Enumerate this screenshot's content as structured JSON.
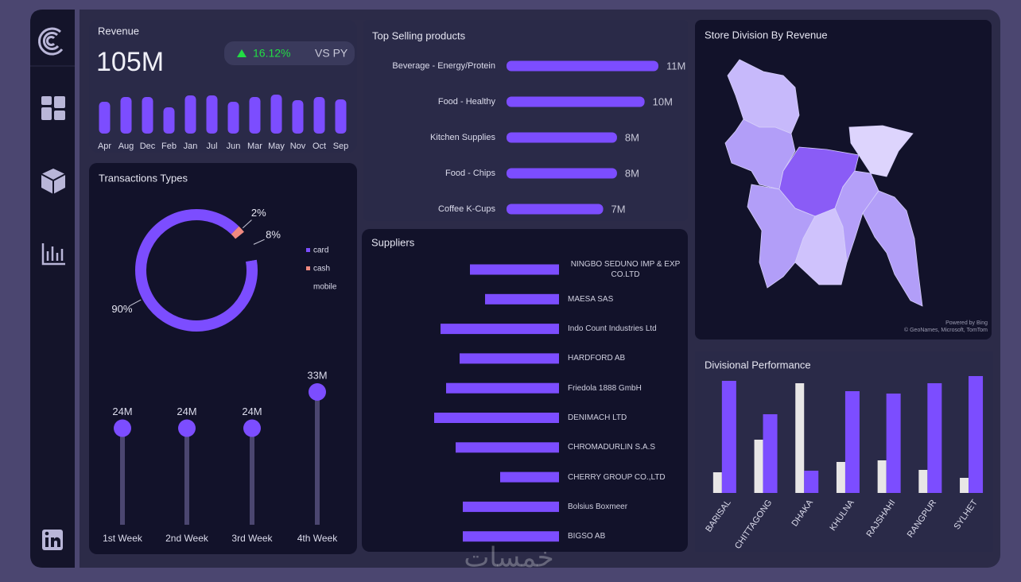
{
  "revenue": {
    "title": "Revenue",
    "value": "105M",
    "change": "16.12%",
    "compare": "VS PY"
  },
  "map": {
    "title": "Store Division By Revenue",
    "credit1": "Powered by Bing",
    "credit2": "© GeoNames, Microsoft, TomTom"
  },
  "watermark": "خمسات",
  "chart_data": [
    {
      "type": "bar",
      "categories": [
        "Apr",
        "Aug",
        "Dec",
        "Feb",
        "Jan",
        "Jul",
        "Jun",
        "Mar",
        "May",
        "Nov",
        "Oct",
        "Sep"
      ],
      "values": [
        8.0,
        9.2,
        9.2,
        6.6,
        9.6,
        9.6,
        8.0,
        9.2,
        9.8,
        8.4,
        9.2,
        8.6
      ],
      "color": "#7c4dff",
      "ylim": [
        0,
        10
      ]
    },
    {
      "type": "hbar",
      "title": "Top Selling products",
      "categories": [
        "Beverage - Energy/Protein",
        "Food - Healthy",
        "Kitchen Supplies",
        "Food - Chips",
        "Coffee K-Cups"
      ],
      "values": [
        11,
        10,
        8,
        8,
        7
      ],
      "value_labels": [
        "11M",
        "10M",
        "8M",
        "8M",
        "7M"
      ],
      "color": "#7c4dff",
      "xlim": [
        0,
        11
      ]
    },
    {
      "type": "pie",
      "title": "Transactions Types",
      "categories": [
        "card",
        "cash",
        "mobile"
      ],
      "values": [
        90,
        2,
        8
      ],
      "value_labels": [
        "90%",
        "2%",
        "8%"
      ],
      "colors": [
        "#7c4dff",
        "#f08a80",
        "#12122a"
      ],
      "legend": "right"
    },
    {
      "type": "lollipop",
      "categories": [
        "1st Week",
        "2nd Week",
        "3rd Week",
        "4th Week"
      ],
      "values": [
        24,
        24,
        24,
        33
      ],
      "value_labels": [
        "24M",
        "24M",
        "24M",
        "33M"
      ],
      "color": "#7c4dff",
      "ylim": [
        0,
        33
      ]
    },
    {
      "type": "hbar",
      "title": "Suppliers",
      "categories": [
        "NINGBO SEDUNO IMP & EXP CO.LTD",
        "MAESA SAS",
        "Indo Count Industries Ltd",
        "HARDFORD AB",
        "Friedola 1888 GmbH",
        "DENIMACH LTD",
        "CHROMADURLIN S.A.S",
        "CHERRY GROUP CO.,LTD",
        "Bolsius Boxmeer",
        "BIGSO AB"
      ],
      "values": [
        11.2,
        9.3,
        14.9,
        12.5,
        14.2,
        15.7,
        13.0,
        7.4,
        12.1,
        12.1
      ],
      "color": "#7c4dff",
      "xlim": [
        0,
        16
      ],
      "xreverse": true
    },
    {
      "type": "grouped_bar",
      "title": "Divisional Performance",
      "categories": [
        "BARISAL",
        "CHITTAGONG",
        "DHAKA",
        "KHULNA",
        "RAJSHAHI",
        "RANGPUR",
        "SYLHET"
      ],
      "series": [
        {
          "color": "#e8e6e6",
          "values": [
            26,
            67,
            138,
            39,
            41,
            29,
            19
          ]
        },
        {
          "color": "#7c4dff",
          "values": [
            141,
            99,
            28,
            128,
            125,
            138,
            147
          ]
        }
      ],
      "ylim": [
        0,
        150
      ]
    }
  ]
}
